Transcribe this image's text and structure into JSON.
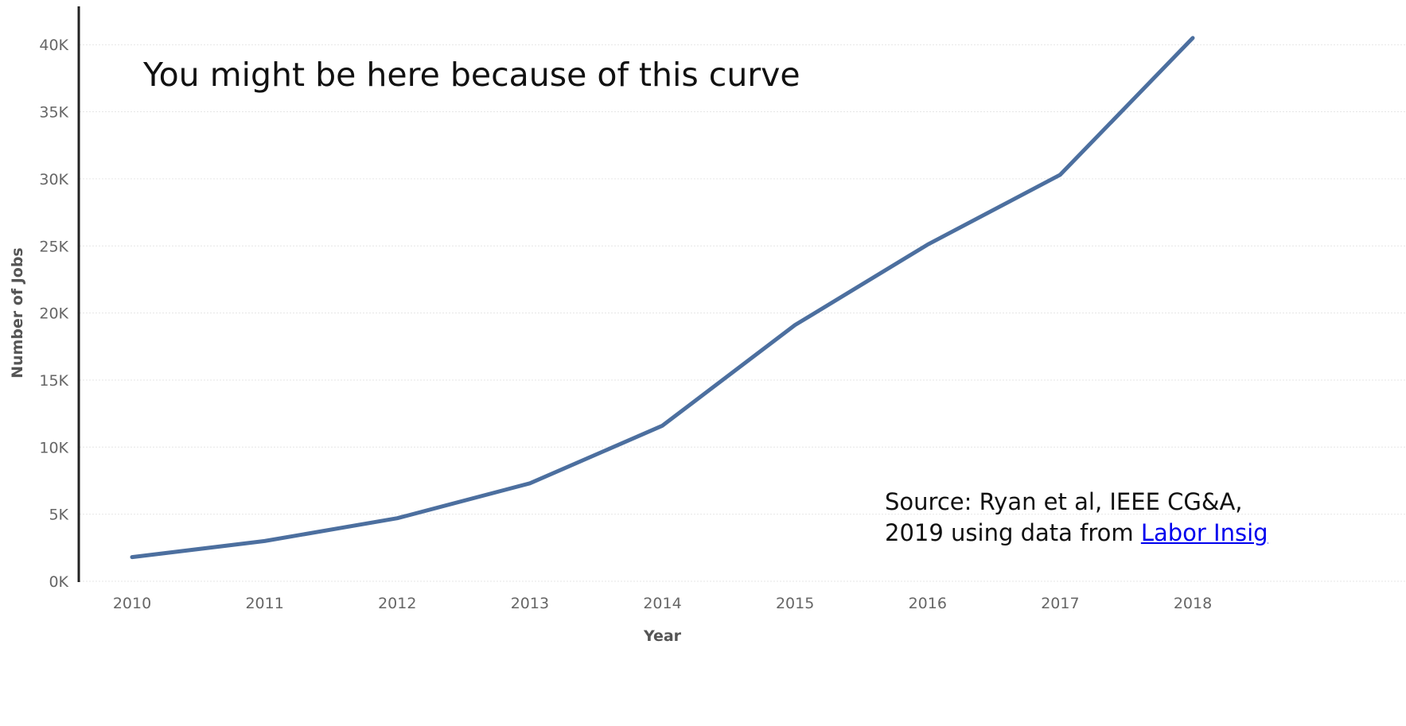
{
  "chart_data": {
    "type": "line",
    "xlabel": "Year",
    "ylabel": "Number of Jobs",
    "categories": [
      "2010",
      "2011",
      "2012",
      "2013",
      "2014",
      "2015",
      "2016",
      "2017",
      "2018"
    ],
    "series": [
      {
        "values": [
          1800,
          3000,
          4700,
          7300,
          11600,
          19100,
          25100,
          30300,
          40500
        ]
      }
    ],
    "ylim": [
      0,
      42000
    ],
    "yticks": [
      0,
      5000,
      10000,
      15000,
      20000,
      25000,
      30000,
      35000,
      40000
    ],
    "ytick_labels": [
      "0K",
      "5K",
      "10K",
      "15K",
      "20K",
      "25K",
      "30K",
      "35K",
      "40K"
    ],
    "grid": true,
    "line_color": "#4c6f9f"
  },
  "annotations": {
    "headline": "You might be here because of this curve",
    "source_line1": "Source: Ryan et al, IEEE CG&A,",
    "source_line2_prefix": "2019 using data from ",
    "source_link_text": "Labor Insig"
  }
}
